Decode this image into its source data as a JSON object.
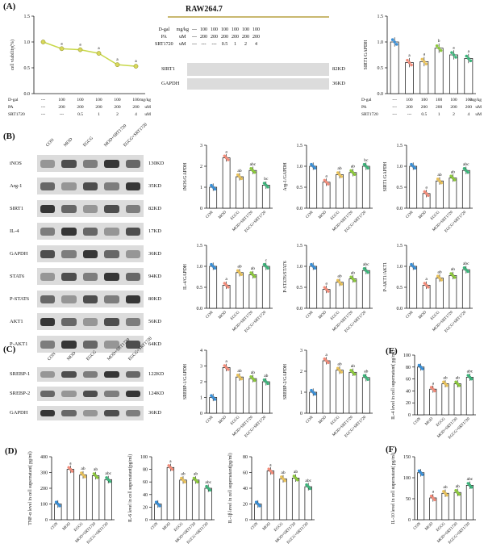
{
  "panels": {
    "A": "(A)",
    "B": "(B)",
    "C": "(C)",
    "D": "(D)",
    "E": "(E)",
    "F": "(F)"
  },
  "panelA": {
    "cell_line": "RAW264.7",
    "table_rows": [
      {
        "name": "D-gal",
        "unit": "mg/kg",
        "vals": [
          "---",
          "100",
          "100",
          "100",
          "100",
          "100",
          "100"
        ]
      },
      {
        "name": "PA",
        "unit": "uM",
        "vals": [
          "---",
          "200",
          "200",
          "200",
          "200",
          "200",
          "200"
        ]
      },
      {
        "name": "SRT1720",
        "unit": "uM",
        "vals": [
          "---",
          "---",
          "---",
          "0.5",
          "1",
          "2",
          "4"
        ]
      }
    ],
    "blot_rows": [
      {
        "name": "SIRT1",
        "kd": "82KD"
      },
      {
        "name": "GAPDH",
        "kd": "36KD"
      }
    ],
    "under_rows": [
      {
        "name": "D-gal",
        "vals": [
          "---",
          "100",
          "100",
          "100",
          "100",
          "100"
        ],
        "unit": "mg/kg"
      },
      {
        "name": "PA",
        "vals": [
          "---",
          "200",
          "200",
          "200",
          "200",
          "200"
        ],
        "unit": "uM"
      },
      {
        "name": "SRT1720",
        "vals": [
          "---",
          "---",
          "0.5",
          "1",
          "2",
          "4"
        ],
        "unit": "uM"
      }
    ]
  },
  "panelB_blots": {
    "lanes": [
      "CON",
      "MOD",
      "EGCG",
      "MOD+SRT1720",
      "EGCG+SRT1720"
    ],
    "rows": [
      {
        "name": "iNOS",
        "kd": "130KD"
      },
      {
        "name": "Arg-1",
        "kd": "35KD"
      },
      {
        "name": "SIRT1",
        "kd": "82KD"
      },
      {
        "name": "IL-4",
        "kd": "17KD"
      },
      {
        "name": "GAPDH",
        "kd": "36KD"
      },
      {
        "name": "STAT6",
        "kd": "94KD"
      },
      {
        "name": "P-STAT6",
        "kd": "80KD"
      },
      {
        "name": "AKT1",
        "kd": "56KD"
      },
      {
        "name": "P-AKT1",
        "kd": "64KD"
      }
    ]
  },
  "panelC_blots": {
    "lanes": [
      "CON",
      "MOD",
      "EGCG",
      "MOD+SRT1720",
      "EGCG+SRT1720"
    ],
    "rows": [
      {
        "name": "SREBP-1",
        "kd": "122KD"
      },
      {
        "name": "SREBP-2",
        "kd": "124KD"
      },
      {
        "name": "GAPDH",
        "kd": "36KD"
      }
    ]
  },
  "colors": {
    "CON": "#3a8fd6",
    "MOD": "#f08c7a",
    "EGCG": "#e8c15a",
    "MOD+SRT1720": "#8cc83c",
    "EGCG+SRT1720": "#3cb37a",
    "line": "#c8d84a"
  },
  "chart_data": [
    {
      "id": "A-line",
      "type": "line",
      "title": "",
      "ylabel": "cell viability(%)",
      "ylim": [
        0,
        1.5
      ],
      "yticks": [
        "0.0",
        "0.5",
        "1.0",
        "1.5"
      ],
      "x": [
        "1",
        "2",
        "3",
        "4",
        "5",
        "6"
      ],
      "values": [
        1.0,
        0.87,
        0.85,
        0.78,
        0.56,
        0.53
      ],
      "letters": [
        "",
        "a",
        "a",
        "a",
        "a",
        "a"
      ],
      "x_table": [
        [
          "D-gal",
          "---",
          "100",
          "100",
          "100",
          "100",
          "100",
          "mg/kg"
        ],
        [
          "PA",
          "---",
          "200",
          "200",
          "200",
          "200",
          "200",
          "uM"
        ],
        [
          "SRT1720",
          "---",
          "---",
          "0.5",
          "1",
          "2",
          "4",
          "uM"
        ]
      ]
    },
    {
      "id": "A-bar",
      "type": "bar",
      "ylabel": "SIRT1/GAPDH",
      "ylim": [
        0,
        1.5
      ],
      "yticks": [
        "0.0",
        "0.5",
        "1.0",
        "1.5"
      ],
      "categories": [
        "1",
        "2",
        "3",
        "4",
        "5",
        "6"
      ],
      "values": [
        1.0,
        0.6,
        0.62,
        0.88,
        0.75,
        0.68
      ],
      "letters": [
        "",
        "a",
        "a",
        "b",
        "a",
        "a"
      ],
      "colors": [
        "#3a8fd6",
        "#f08c7a",
        "#e8c15a",
        "#8cc83c",
        "#3cb37a",
        "#3cb37a"
      ],
      "x_table": [
        [
          "D-gal",
          "---",
          "100",
          "100",
          "100",
          "100",
          "100",
          "mg/kg"
        ],
        [
          "PA",
          "---",
          "200",
          "200",
          "200",
          "200",
          "200",
          "uM"
        ],
        [
          "SRT1720",
          "---",
          "---",
          "0.5",
          "1",
          "2",
          "4",
          "uM"
        ]
      ]
    },
    {
      "id": "B1",
      "type": "bar",
      "ylabel": "iNOS/GAPDH",
      "ylim": [
        0,
        3
      ],
      "yticks": [
        "0",
        "1",
        "2",
        "3"
      ],
      "categories": [
        "CON",
        "MOD",
        "EGCG",
        "MOD+SRT1720",
        "EGCG+SRT1720"
      ],
      "values": [
        1.0,
        2.4,
        1.5,
        1.8,
        1.1
      ],
      "letters": [
        "",
        "a",
        "ab",
        "abc",
        "bc"
      ]
    },
    {
      "id": "B2",
      "type": "bar",
      "ylabel": "Arg-1/GAPDH",
      "ylim": [
        0,
        1.5
      ],
      "yticks": [
        "0.0",
        "0.5",
        "1.0",
        "1.5"
      ],
      "categories": [
        "CON",
        "MOD",
        "EGCG",
        "MOD+SRT1720",
        "EGCG+SRT1720"
      ],
      "values": [
        1.0,
        0.62,
        0.8,
        0.85,
        1.0
      ],
      "letters": [
        "",
        "a",
        "ab",
        "ab",
        "bc"
      ]
    },
    {
      "id": "B3",
      "type": "bar",
      "ylabel": "SIRT1/GAPDH",
      "ylim": [
        0,
        1.5
      ],
      "yticks": [
        "0.0",
        "0.5",
        "1.0",
        "1.5"
      ],
      "categories": [
        "CON",
        "MOD",
        "EGCG",
        "MOD+SRT1720",
        "EGCG+SRT1720"
      ],
      "values": [
        1.0,
        0.35,
        0.65,
        0.72,
        0.9
      ],
      "letters": [
        "",
        "a",
        "ab",
        "ab",
        "abc"
      ]
    },
    {
      "id": "B4",
      "type": "bar",
      "ylabel": "IL-4/GAPDH",
      "ylim": [
        0,
        1.5
      ],
      "yticks": [
        "0.0",
        "0.5",
        "1.0",
        "1.5"
      ],
      "categories": [
        "CON",
        "MOD",
        "EGCG",
        "MOD+SRT1720",
        "EGCG+SRT1720"
      ],
      "values": [
        1.0,
        0.55,
        0.85,
        0.8,
        1.0
      ],
      "letters": [
        "",
        "a",
        "ab",
        "ab",
        "c"
      ]
    },
    {
      "id": "B5",
      "type": "bar",
      "ylabel": "P-STAT6/STAT6",
      "ylim": [
        0,
        1.5
      ],
      "yticks": [
        "0.0",
        "0.5",
        "1.0",
        "1.5"
      ],
      "categories": [
        "CON",
        "MOD",
        "EGCG",
        "MOD+SRT1720",
        "EGCG+SRT1720"
      ],
      "values": [
        1.0,
        0.45,
        0.62,
        0.7,
        0.9
      ],
      "letters": [
        "",
        "a",
        "ab",
        "ab",
        "abc"
      ]
    },
    {
      "id": "B6",
      "type": "bar",
      "ylabel": "P-AKT1/AKT1",
      "ylim": [
        0,
        1.5
      ],
      "yticks": [
        "0.0",
        "0.5",
        "1.0",
        "1.5"
      ],
      "categories": [
        "CON",
        "MOD",
        "EGCG",
        "MOD+SRT1720",
        "EGCG+SRT1720"
      ],
      "values": [
        1.0,
        0.55,
        0.72,
        0.78,
        0.92
      ],
      "letters": [
        "",
        "a",
        "ab",
        "ab",
        "abc"
      ]
    },
    {
      "id": "C1",
      "type": "bar",
      "ylabel": "SREBP-1/GAPDH",
      "ylim": [
        0,
        4
      ],
      "yticks": [
        "0",
        "1",
        "2",
        "3",
        "4"
      ],
      "categories": [
        "CON",
        "MOD",
        "EGCG",
        "MOD+SRT1720",
        "EGCG+SRT1720"
      ],
      "values": [
        1.0,
        2.9,
        2.3,
        2.2,
        2.0
      ],
      "letters": [
        "",
        "a",
        "ab",
        "ab",
        "ab"
      ]
    },
    {
      "id": "C2",
      "type": "bar",
      "ylabel": "SREBP-2/GAPDH",
      "ylim": [
        0,
        3
      ],
      "yticks": [
        "0",
        "1",
        "2",
        "3"
      ],
      "categories": [
        "CON",
        "MOD",
        "EGCG",
        "MOD+SRT1720",
        "EGCG+SRT1720"
      ],
      "values": [
        1.0,
        2.5,
        2.05,
        1.95,
        1.7
      ],
      "letters": [
        "",
        "a",
        "ab",
        "ab",
        "ab"
      ]
    },
    {
      "id": "E",
      "type": "bar",
      "ylabel": "IL-4 level in cell supernatant( pg/ml)",
      "ylim": [
        0,
        100
      ],
      "yticks": [
        "0",
        "20",
        "40",
        "60",
        "80",
        "100"
      ],
      "categories": [
        "CON",
        "MOD",
        "EGCG",
        "MOD+SRT1720",
        "EGCG+SRT1720"
      ],
      "values": [
        80,
        43,
        52,
        52,
        63
      ],
      "letters": [
        "",
        "a",
        "ab",
        "ab",
        "abc"
      ]
    },
    {
      "id": "D1",
      "type": "bar",
      "ylabel": "TNF-α level in cell supernatant( pg/ml)",
      "ylim": [
        0,
        400
      ],
      "yticks": [
        "0",
        "100",
        "200",
        "300",
        "400"
      ],
      "categories": [
        "CON",
        "MOD",
        "EGCG",
        "MOD+SRT1720",
        "EGCG+SRT1720"
      ],
      "values": [
        100,
        320,
        285,
        280,
        255
      ],
      "letters": [
        "",
        "a",
        "ab",
        "ab",
        "abc"
      ]
    },
    {
      "id": "D2",
      "type": "bar",
      "ylabel": "IL-6 level in cell supernatant(pg/ml)",
      "ylim": [
        0,
        100
      ],
      "yticks": [
        "0",
        "20",
        "40",
        "60",
        "80",
        "100"
      ],
      "categories": [
        "CON",
        "MOD",
        "EGCG",
        "MOD+SRT1720",
        "EGCG+SRT1720"
      ],
      "values": [
        25,
        83,
        63,
        63,
        50
      ],
      "letters": [
        "",
        "a",
        "ab",
        "ab",
        "abc"
      ]
    },
    {
      "id": "D3",
      "type": "bar",
      "ylabel": "IL-1β level in cell supernatant(pg/ml)",
      "ylim": [
        0,
        80
      ],
      "yticks": [
        "0",
        "20",
        "40",
        "60",
        "80"
      ],
      "categories": [
        "CON",
        "MOD",
        "EGCG",
        "MOD+SRT1720",
        "EGCG+SRT1720"
      ],
      "values": [
        20,
        62,
        52,
        53,
        42
      ],
      "letters": [
        "",
        "a",
        "ab",
        "ab",
        "abc"
      ]
    },
    {
      "id": "F",
      "type": "bar",
      "ylabel": "IL-10 level in cell supernatant( pg/ml)",
      "ylim": [
        0,
        150
      ],
      "yticks": [
        "0",
        "50",
        "100",
        "150"
      ],
      "categories": [
        "CON",
        "MOD",
        "EGCG",
        "MOD+SRT1720",
        "EGCG+SRT1720"
      ],
      "values": [
        112,
        52,
        63,
        65,
        82
      ],
      "letters": [
        "",
        "a",
        "ab",
        "ab",
        "abc"
      ]
    }
  ]
}
